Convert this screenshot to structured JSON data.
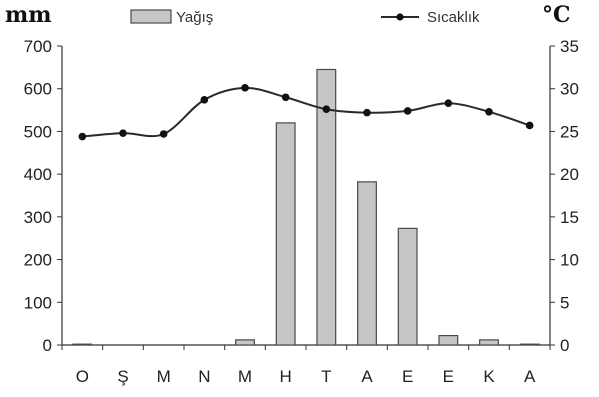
{
  "chart_data": {
    "type": "bar+line",
    "categories": [
      "O",
      "Ş",
      "M",
      "N",
      "M",
      "H",
      "T",
      "A",
      "E",
      "E",
      "K",
      "A"
    ],
    "y_left_unit": "mm",
    "y_right_unit": "°C",
    "y_left_ticks": [
      "0",
      "100",
      "200",
      "300",
      "400",
      "500",
      "600",
      "700"
    ],
    "y_right_ticks": [
      "0",
      "5",
      "10",
      "15",
      "20",
      "25",
      "30",
      "35"
    ],
    "y_left_range": [
      0,
      700
    ],
    "y_right_range": [
      0,
      35
    ],
    "grid": false,
    "legend_position": "top",
    "series": [
      {
        "name": "Yağış",
        "type": "bar",
        "axis": "left",
        "values": [
          2,
          0,
          0,
          0,
          12,
          520,
          645,
          382,
          273,
          22,
          12,
          2
        ]
      },
      {
        "name": "Sıcaklık",
        "type": "line",
        "axis": "right",
        "values": [
          24.4,
          24.8,
          24.7,
          28.7,
          30.1,
          29.0,
          27.6,
          27.2,
          27.4,
          28.3,
          27.3,
          25.7
        ]
      }
    ],
    "colors": {
      "bar_fill": "#c6c6c6",
      "bar_stroke": "#4a4a4a",
      "line": "#2a2a2a"
    }
  }
}
